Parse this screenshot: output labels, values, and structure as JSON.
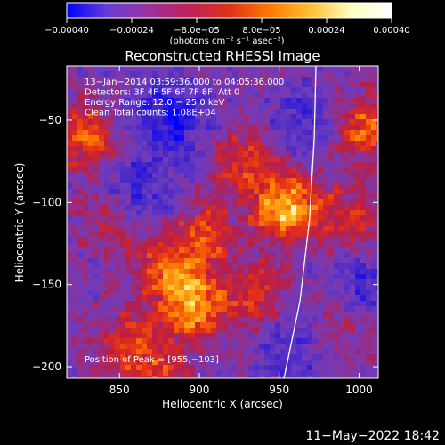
{
  "chart_data": {
    "type": "heatmap",
    "title": "Reconstructed RHESSI Image",
    "xlabel": "Heliocentric X (arcsec)",
    "ylabel": "Heliocentric Y (arcsec)",
    "xlim": [
      817,
      1012
    ],
    "ylim": [
      -207,
      -17
    ],
    "x_ticks": [
      850,
      900,
      950,
      1000
    ],
    "y_ticks": [
      -50,
      -100,
      -150,
      -200
    ],
    "x_tick_labels": [
      "850",
      "900",
      "950",
      "1000"
    ],
    "y_tick_labels": [
      "−50",
      "−100",
      "−150",
      "−200"
    ],
    "colorbar": {
      "range": [
        -0.0004,
        0.0004
      ],
      "ticks": [
        -0.0004,
        -0.00024,
        -8e-05,
        8e-05,
        0.00024,
        0.0004
      ],
      "tick_labels": [
        "−0.00040",
        "−0.00024",
        "−8.0e−05",
        "8.0e−05",
        "0.00024",
        "0.00040"
      ],
      "unit_label": "(photons cm⁻² s⁻¹ asec⁻²)",
      "colors": [
        "#0000ff",
        "#6a3cd6",
        "#9a32a0",
        "#c0205a",
        "#e03018",
        "#ff7a00",
        "#ffc030",
        "#ffffc0",
        "#ffffff"
      ]
    },
    "info_lines": [
      "13−Jan−2014 03:59:36.000 to 04:05:36.000",
      "Detectors: 3F 4F 5F 6F 7F 8F, Att 0",
      "Energy Range: 12.0 − 25.0 keV",
      "Clean     Total counts: 1.08E+04"
    ],
    "peak_label": "Position of Peak = [955,−103]",
    "peak": [
      955,
      -103
    ],
    "limb_line": [
      [
        953,
        -207
      ],
      [
        963,
        -160
      ],
      [
        969,
        -110
      ],
      [
        972,
        -60
      ],
      [
        973,
        -17
      ]
    ],
    "emission_sources": [
      {
        "x": 955,
        "y": -103,
        "strength": 1.0
      },
      {
        "x": 930,
        "y": -75,
        "strength": 0.55
      },
      {
        "x": 897,
        "y": -163,
        "strength": 0.85
      },
      {
        "x": 880,
        "y": -140,
        "strength": 0.65
      },
      {
        "x": 905,
        "y": -120,
        "strength": 0.55
      },
      {
        "x": 855,
        "y": -185,
        "strength": 0.5
      },
      {
        "x": 935,
        "y": -155,
        "strength": 0.45
      },
      {
        "x": 830,
        "y": -60,
        "strength": 0.65
      },
      {
        "x": 845,
        "y": -110,
        "strength": 0.4
      },
      {
        "x": 1003,
        "y": -55,
        "strength": 0.65
      },
      {
        "x": 995,
        "y": -110,
        "strength": 0.45
      },
      {
        "x": 985,
        "y": -175,
        "strength": 0.35
      },
      {
        "x": 875,
        "y": -200,
        "strength": 0.4
      }
    ],
    "negative_regions": [
      {
        "x": 880,
        "y": -50,
        "strength": 0.6
      },
      {
        "x": 860,
        "y": -95,
        "strength": 0.45
      },
      {
        "x": 965,
        "y": -50,
        "strength": 0.4
      },
      {
        "x": 1000,
        "y": -150,
        "strength": 0.35
      },
      {
        "x": 960,
        "y": -190,
        "strength": 0.35
      }
    ]
  },
  "footer": {
    "date": "11−May−2022 18:42"
  }
}
